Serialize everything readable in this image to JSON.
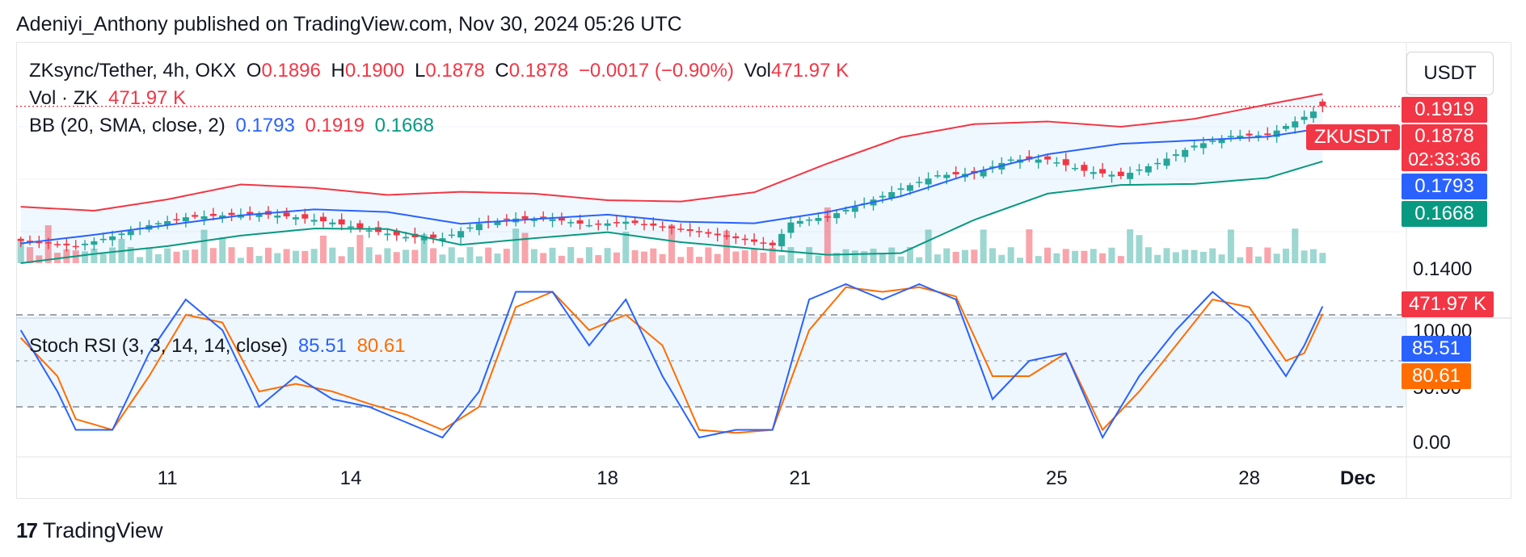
{
  "header": {
    "publisher_line": "Adeniyi_Anthony published on TradingView.com, Nov 30, 2024 05:26 UTC"
  },
  "legend": {
    "symbol": "ZKsync/Tether, 4h, OKX",
    "o_label": "O",
    "o_value": "0.1896",
    "h_label": "H",
    "h_value": "0.1900",
    "l_label": "L",
    "l_value": "0.1878",
    "c_label": "C",
    "c_value": "0.1878",
    "change": "−0.0017 (−0.90%)",
    "vol_label": "Vol",
    "vol_value": "471.97 K",
    "vol_line_label": "Vol · ZK",
    "vol_line_value": "471.97 K",
    "bb_label": "BB (20, SMA, close, 2)",
    "bb_basis": "0.1793",
    "bb_upper": "0.1919",
    "bb_lower": "0.1668",
    "stoch_label": "Stoch RSI (3, 3, 14, 14, close)",
    "stoch_k": "85.51",
    "stoch_d": "80.61"
  },
  "unit_button": "USDT",
  "price_axis": {
    "bb_upper_label": "0.1919",
    "ticker_tag": "ZKUSDT",
    "last_price_label": "0.1878",
    "countdown": "02:33:36",
    "bb_basis_label": "0.1793",
    "bb_lower_label": "0.1668",
    "tick_label": "0.1400",
    "volume_label": "471.97 K"
  },
  "stoch_axis": {
    "top_label": "100.00",
    "mid_label": "50.00",
    "bottom_label": "0.00",
    "k_label": "85.51",
    "d_label": "80.61"
  },
  "time_axis": {
    "labels": [
      "11",
      "14",
      "18",
      "21",
      "25",
      "28",
      "Dec"
    ]
  },
  "footer": {
    "brand": "TradingView",
    "logo_glyph": "17"
  },
  "colors": {
    "up": "#26a69a",
    "down": "#f23645",
    "bb_upper": "#f23645",
    "bb_basis": "#2962ff",
    "bb_lower": "#089981",
    "stoch_k": "#2962ff",
    "stoch_d": "#ff6d00"
  },
  "chart_data": {
    "type": "candlestick",
    "price_ylim": [
      0.128,
      0.2
    ],
    "price_ticks": [
      0.14
    ],
    "bollinger": {
      "upper_anchors": [
        [
          0,
          0.1495
        ],
        [
          8,
          0.148
        ],
        [
          16,
          0.1523
        ],
        [
          24,
          0.158
        ],
        [
          32,
          0.1567
        ],
        [
          40,
          0.154
        ],
        [
          48,
          0.1552
        ],
        [
          56,
          0.1545
        ],
        [
          64,
          0.152
        ],
        [
          72,
          0.1515
        ],
        [
          80,
          0.155
        ],
        [
          88,
          0.166
        ],
        [
          96,
          0.176
        ],
        [
          104,
          0.181
        ],
        [
          112,
          0.182
        ],
        [
          120,
          0.18
        ],
        [
          128,
          0.183
        ],
        [
          136,
          0.1885
        ],
        [
          142,
          0.1925
        ]
      ],
      "basis_anchors": [
        [
          0,
          0.1355
        ],
        [
          8,
          0.1388
        ],
        [
          16,
          0.1425
        ],
        [
          24,
          0.1462
        ],
        [
          32,
          0.1485
        ],
        [
          40,
          0.1475
        ],
        [
          48,
          0.143
        ],
        [
          56,
          0.1448
        ],
        [
          64,
          0.1465
        ],
        [
          72,
          0.1438
        ],
        [
          80,
          0.1432
        ],
        [
          88,
          0.1475
        ],
        [
          96,
          0.1535
        ],
        [
          104,
          0.1625
        ],
        [
          112,
          0.1695
        ],
        [
          120,
          0.1735
        ],
        [
          128,
          0.1748
        ],
        [
          136,
          0.1762
        ],
        [
          142,
          0.1795
        ]
      ],
      "lower_anchors": [
        [
          0,
          0.128
        ],
        [
          8,
          0.1315
        ],
        [
          16,
          0.1345
        ],
        [
          24,
          0.1385
        ],
        [
          32,
          0.1412
        ],
        [
          40,
          0.141
        ],
        [
          48,
          0.135
        ],
        [
          56,
          0.1375
        ],
        [
          64,
          0.1398
        ],
        [
          72,
          0.136
        ],
        [
          80,
          0.1335
        ],
        [
          88,
          0.1312
        ],
        [
          96,
          0.1318
        ],
        [
          104,
          0.1445
        ],
        [
          112,
          0.1545
        ],
        [
          120,
          0.1578
        ],
        [
          128,
          0.1582
        ],
        [
          136,
          0.1605
        ],
        [
          142,
          0.1668
        ]
      ]
    },
    "close_anchors": [
      [
        0,
        0.1365
      ],
      [
        6,
        0.1345
      ],
      [
        10,
        0.1382
      ],
      [
        14,
        0.1425
      ],
      [
        18,
        0.1455
      ],
      [
        22,
        0.1462
      ],
      [
        26,
        0.1468
      ],
      [
        30,
        0.1455
      ],
      [
        34,
        0.1435
      ],
      [
        38,
        0.1405
      ],
      [
        42,
        0.138
      ],
      [
        46,
        0.1375
      ],
      [
        50,
        0.143
      ],
      [
        54,
        0.145
      ],
      [
        58,
        0.1448
      ],
      [
        62,
        0.1425
      ],
      [
        66,
        0.1438
      ],
      [
        70,
        0.1418
      ],
      [
        74,
        0.1398
      ],
      [
        78,
        0.1375
      ],
      [
        82,
        0.1348
      ],
      [
        84,
        0.1435
      ],
      [
        88,
        0.1458
      ],
      [
        92,
        0.1508
      ],
      [
        96,
        0.1565
      ],
      [
        100,
        0.1615
      ],
      [
        104,
        0.1622
      ],
      [
        108,
        0.1675
      ],
      [
        112,
        0.1675
      ],
      [
        116,
        0.1632
      ],
      [
        120,
        0.1612
      ],
      [
        124,
        0.1662
      ],
      [
        128,
        0.1728
      ],
      [
        132,
        0.1765
      ],
      [
        136,
        0.1768
      ],
      [
        140,
        0.1838
      ],
      [
        142,
        0.1878
      ]
    ],
    "stoch_k_anchors": [
      [
        0,
        70
      ],
      [
        4,
        30
      ],
      [
        6,
        5
      ],
      [
        10,
        5
      ],
      [
        14,
        55
      ],
      [
        18,
        90
      ],
      [
        22,
        70
      ],
      [
        26,
        20
      ],
      [
        30,
        40
      ],
      [
        34,
        25
      ],
      [
        38,
        20
      ],
      [
        42,
        10
      ],
      [
        46,
        0
      ],
      [
        50,
        30
      ],
      [
        54,
        95
      ],
      [
        58,
        95
      ],
      [
        62,
        60
      ],
      [
        66,
        90
      ],
      [
        70,
        40
      ],
      [
        74,
        0
      ],
      [
        78,
        5
      ],
      [
        82,
        5
      ],
      [
        86,
        90
      ],
      [
        90,
        100
      ],
      [
        94,
        90
      ],
      [
        98,
        100
      ],
      [
        102,
        90
      ],
      [
        106,
        25
      ],
      [
        110,
        50
      ],
      [
        114,
        55
      ],
      [
        118,
        0
      ],
      [
        122,
        40
      ],
      [
        126,
        70
      ],
      [
        130,
        95
      ],
      [
        134,
        75
      ],
      [
        138,
        40
      ],
      [
        140,
        60
      ],
      [
        142,
        85.51
      ]
    ],
    "stoch_d_anchors": [
      [
        0,
        65
      ],
      [
        4,
        40
      ],
      [
        6,
        12
      ],
      [
        10,
        5
      ],
      [
        14,
        40
      ],
      [
        18,
        80
      ],
      [
        22,
        75
      ],
      [
        26,
        30
      ],
      [
        30,
        35
      ],
      [
        34,
        30
      ],
      [
        38,
        22
      ],
      [
        42,
        15
      ],
      [
        46,
        5
      ],
      [
        50,
        20
      ],
      [
        54,
        85
      ],
      [
        58,
        95
      ],
      [
        62,
        70
      ],
      [
        66,
        80
      ],
      [
        70,
        60
      ],
      [
        74,
        5
      ],
      [
        78,
        3
      ],
      [
        82,
        5
      ],
      [
        86,
        70
      ],
      [
        90,
        98
      ],
      [
        94,
        95
      ],
      [
        98,
        98
      ],
      [
        102,
        92
      ],
      [
        106,
        40
      ],
      [
        110,
        40
      ],
      [
        114,
        55
      ],
      [
        118,
        5
      ],
      [
        122,
        30
      ],
      [
        126,
        60
      ],
      [
        130,
        90
      ],
      [
        134,
        85
      ],
      [
        138,
        50
      ],
      [
        140,
        55
      ],
      [
        142,
        80.61
      ]
    ],
    "stoch_ylim": [
      0,
      100
    ],
    "stoch_levels": [
      80,
      50,
      20
    ],
    "last": {
      "open": 0.1896,
      "high": 0.19,
      "low": 0.1878,
      "close": 0.1878,
      "volume": "471.97 K"
    },
    "x_ticks": [
      "11",
      "14",
      "18",
      "21",
      "25",
      "28",
      "Dec"
    ]
  }
}
